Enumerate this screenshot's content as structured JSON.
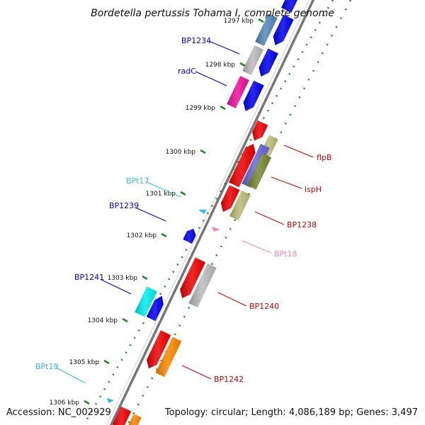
{
  "title": "Bordetella pertussis Tohama I, complete genome",
  "accession": "Accession: NC_002929",
  "topology": "Topology: circular; Length: 4,086,189 bp; Genes: 3,497",
  "kbp_ticks": [
    "1297 kbp",
    "1298 kbp",
    "1299 kbp",
    "1300 kbp",
    "1301 kbp",
    "1302 kbp",
    "1303 kbp",
    "1304 kbp",
    "1305 kbp",
    "1306 kbp"
  ],
  "labels": [
    {
      "text": "BP1234",
      "color": "#0000c8"
    },
    {
      "text": "radC",
      "color": "#0000c8"
    },
    {
      "text": "BPt17",
      "color": "#33bbee"
    },
    {
      "text": "BP1239",
      "color": "#0000c8"
    },
    {
      "text": "BP1241",
      "color": "#0000c8"
    },
    {
      "text": "BPt19",
      "color": "#33bbee"
    },
    {
      "text": "flpB",
      "color": "#cc0000"
    },
    {
      "text": "ispH",
      "color": "#cc0000"
    },
    {
      "text": "BP1238",
      "color": "#cc0000"
    },
    {
      "text": "BPt18",
      "color": "#ee88bb"
    },
    {
      "text": "BP1240",
      "color": "#cc0000"
    },
    {
      "text": "BP1242",
      "color": "#cc0000"
    }
  ],
  "colors": {
    "backbone": "#777777",
    "tick_ring": "#228822",
    "red": "#ee0000",
    "blue": "#0000ee",
    "grey": "#bbbbbb",
    "steelblue": "#5588bb",
    "magenta": "#ee1199",
    "khaki": "#bbbb77",
    "slateblue": "#6666dd",
    "olive": "#778833",
    "cyan": "#00eeee",
    "orange": "#ff8800",
    "trna_cyan": "#33bbee",
    "trna_pink": "#ee88bb"
  }
}
